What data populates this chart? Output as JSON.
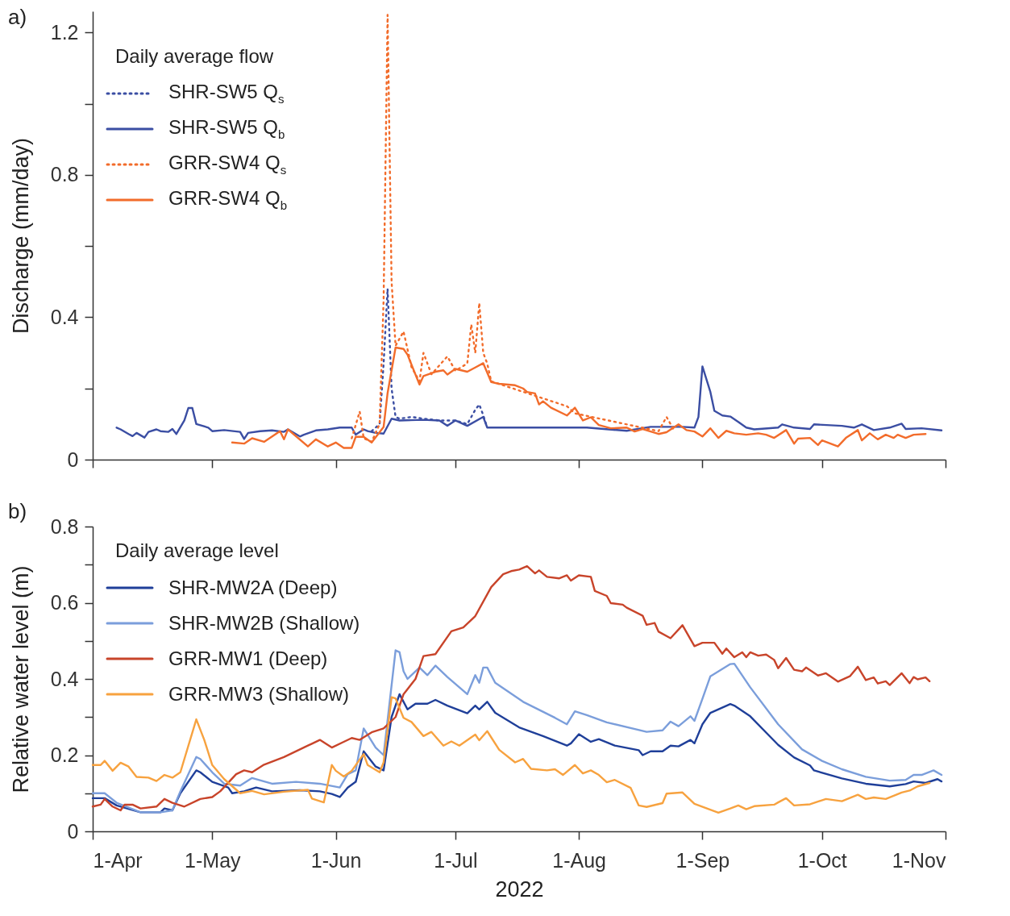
{
  "chart_data": [
    {
      "type": "line",
      "annotations": [
        "a)"
      ],
      "ylabel": "Discharge (mm/day)",
      "legend_title": "Daily average flow",
      "legend": "top left",
      "grid": false,
      "tick_labels": "y",
      "xlim": [
        "2022-04-01",
        "2022-11-01"
      ],
      "xticks": [
        {
          "value": "2022-04-01",
          "label": null
        },
        {
          "value": "2022-05-01",
          "label": null
        },
        {
          "value": "2022-06-01",
          "label": null
        },
        {
          "value": "2022-07-01",
          "label": null
        },
        {
          "value": "2022-08-01",
          "label": null
        },
        {
          "value": "2022-09-01",
          "label": null
        },
        {
          "value": "2022-10-01",
          "label": null
        },
        {
          "value": "2022-11-01",
          "label": null
        }
      ],
      "ylim": [
        0,
        1.26
      ],
      "yticks": [
        0,
        {
          "value": 0.2,
          "label": null
        },
        0.4,
        {
          "value": 0.6,
          "label": null
        },
        0.8,
        {
          "value": 1.0,
          "label": null
        },
        1.2
      ],
      "series": [
        {
          "name": "SHR-SW5 Q$_{s}$",
          "color": "#3b4ea3",
          "line_style": "dotted",
          "x": [
            "2022-06-10",
            "2022-06-11",
            "2022-06-12",
            "2022-06-13",
            "2022-06-14",
            "2022-06-15",
            "2022-06-16",
            "2022-06-17",
            "2022-06-20",
            "2022-06-23",
            "2022-06-27",
            "2022-07-01",
            "2022-07-04",
            "2022-07-05",
            "2022-07-06",
            "2022-07-07",
            "2022-07-08",
            "2022-07-09"
          ],
          "values": [
            0.08,
            0.09,
            0.1,
            0.27,
            0.48,
            0.2,
            0.12,
            0.115,
            0.12,
            0.115,
            0.11,
            0.11,
            0.1,
            0.12,
            0.14,
            0.155,
            0.125,
            0.09
          ]
        },
        {
          "name": "SHR-SW5 Q$_{b}$",
          "color": "#3b4ea3",
          "line_style": "solid",
          "x": [
            "2022-04-07",
            "2022-04-08",
            "2022-04-10",
            "2022-04-11",
            "2022-04-12",
            "2022-04-14",
            "2022-04-15",
            "2022-04-17",
            "2022-04-18",
            "2022-04-20",
            "2022-04-21",
            "2022-04-22",
            "2022-04-24",
            "2022-04-25",
            "2022-04-26",
            "2022-04-27",
            "2022-04-30",
            "2022-05-01",
            "2022-05-04",
            "2022-05-08",
            "2022-05-09",
            "2022-05-10",
            "2022-05-13",
            "2022-05-16",
            "2022-05-19",
            "2022-05-20",
            "2022-05-23",
            "2022-05-24",
            "2022-05-27",
            "2022-05-30",
            "2022-06-02",
            "2022-06-05",
            "2022-06-06",
            "2022-06-08",
            "2022-06-09",
            "2022-06-11",
            "2022-06-13",
            "2022-06-15",
            "2022-06-17",
            "2022-06-23",
            "2022-06-27",
            "2022-06-29",
            "2022-07-01",
            "2022-07-04",
            "2022-07-08",
            "2022-07-09",
            "2022-07-18",
            "2022-08-03",
            "2022-08-13",
            "2022-08-19",
            "2022-08-27",
            "2022-08-30",
            "2022-08-31",
            "2022-09-01",
            "2022-09-03",
            "2022-09-04",
            "2022-09-06",
            "2022-09-08",
            "2022-09-10",
            "2022-09-12",
            "2022-09-14",
            "2022-09-20",
            "2022-09-21",
            "2022-09-24",
            "2022-09-28",
            "2022-09-29",
            "2022-10-06",
            "2022-10-09",
            "2022-10-11",
            "2022-10-14",
            "2022-10-18",
            "2022-10-21",
            "2022-10-22",
            "2022-10-26",
            "2022-10-31"
          ],
          "values": [
            0.09,
            0.085,
            0.072,
            0.066,
            0.075,
            0.062,
            0.078,
            0.085,
            0.08,
            0.078,
            0.086,
            0.072,
            0.11,
            0.145,
            0.145,
            0.1,
            0.09,
            0.08,
            0.083,
            0.078,
            0.058,
            0.075,
            0.08,
            0.082,
            0.078,
            0.085,
            0.065,
            0.07,
            0.082,
            0.085,
            0.09,
            0.09,
            0.07,
            0.085,
            0.08,
            0.075,
            0.073,
            0.115,
            0.11,
            0.112,
            0.11,
            0.095,
            0.11,
            0.095,
            0.12,
            0.09,
            0.09,
            0.09,
            0.081,
            0.092,
            0.092,
            0.09,
            0.12,
            0.262,
            0.19,
            0.137,
            0.124,
            0.121,
            0.106,
            0.09,
            0.085,
            0.09,
            0.099,
            0.09,
            0.086,
            0.099,
            0.095,
            0.09,
            0.099,
            0.083,
            0.09,
            0.101,
            0.086,
            0.088,
            0.082
          ]
        },
        {
          "name": "GRR-SW4 Q$_{s}$",
          "color": "#f26c2b",
          "line_style": "dotted",
          "x": [
            "2022-06-05",
            "2022-06-07",
            "2022-06-08",
            "2022-06-10",
            "2022-06-12",
            "2022-06-13",
            "2022-06-14",
            "2022-06-15",
            "2022-06-16",
            "2022-06-18",
            "2022-06-20",
            "2022-06-22",
            "2022-06-23",
            "2022-06-25",
            "2022-06-29",
            "2022-07-01",
            "2022-07-04",
            "2022-07-05",
            "2022-07-06",
            "2022-07-07",
            "2022-07-08",
            "2022-07-09",
            "2022-07-10",
            "2022-07-29",
            "2022-07-31",
            "2022-08-21",
            "2022-08-23",
            "2022-08-25"
          ],
          "values": [
            0.06,
            0.135,
            0.06,
            0.05,
            0.1,
            0.45,
            1.25,
            0.5,
            0.32,
            0.36,
            0.26,
            0.22,
            0.3,
            0.24,
            0.29,
            0.25,
            0.27,
            0.38,
            0.3,
            0.44,
            0.3,
            0.27,
            0.22,
            0.15,
            0.13,
            0.08,
            0.12,
            0.08
          ]
        },
        {
          "name": "GRR-SW4 Q$_{b}$",
          "color": "#f26c2b",
          "line_style": "solid",
          "x": [
            "2022-05-06",
            "2022-05-09",
            "2022-05-11",
            "2022-05-14",
            "2022-05-18",
            "2022-05-19",
            "2022-05-20",
            "2022-05-25",
            "2022-05-27",
            "2022-05-30",
            "2022-06-01",
            "2022-06-03",
            "2022-06-05",
            "2022-06-06",
            "2022-06-08",
            "2022-06-10",
            "2022-06-13",
            "2022-06-14",
            "2022-06-16",
            "2022-06-18",
            "2022-06-19",
            "2022-06-22",
            "2022-06-23",
            "2022-06-26",
            "2022-06-28",
            "2022-06-29",
            "2022-07-01",
            "2022-07-04",
            "2022-07-06",
            "2022-07-08",
            "2022-07-10",
            "2022-07-12",
            "2022-07-16",
            "2022-07-18",
            "2022-07-19",
            "2022-07-21",
            "2022-07-22",
            "2022-07-23",
            "2022-07-25",
            "2022-07-29",
            "2022-07-31",
            "2022-08-02",
            "2022-08-04",
            "2022-08-06",
            "2022-08-09",
            "2022-08-13",
            "2022-08-15",
            "2022-08-17",
            "2022-08-19",
            "2022-08-21",
            "2022-08-23",
            "2022-08-26",
            "2022-08-28",
            "2022-08-30",
            "2022-09-01",
            "2022-09-03",
            "2022-09-05",
            "2022-09-07",
            "2022-09-09",
            "2022-09-12",
            "2022-09-15",
            "2022-09-17",
            "2022-09-19",
            "2022-09-22",
            "2022-09-24",
            "2022-09-25",
            "2022-09-28",
            "2022-09-30",
            "2022-10-01",
            "2022-10-05",
            "2022-10-07",
            "2022-10-10",
            "2022-10-11",
            "2022-10-13",
            "2022-10-15",
            "2022-10-17",
            "2022-10-19",
            "2022-10-20",
            "2022-10-22",
            "2022-10-24",
            "2022-10-27"
          ],
          "values": [
            0.048,
            0.045,
            0.06,
            0.05,
            0.08,
            0.057,
            0.085,
            0.037,
            0.057,
            0.037,
            0.048,
            0.033,
            0.033,
            0.064,
            0.064,
            0.048,
            0.092,
            0.187,
            0.315,
            0.311,
            0.295,
            0.211,
            0.235,
            0.247,
            0.251,
            0.239,
            0.255,
            0.247,
            0.259,
            0.271,
            0.218,
            0.213,
            0.209,
            0.2,
            0.19,
            0.186,
            0.155,
            0.164,
            0.146,
            0.124,
            0.146,
            0.11,
            0.119,
            0.097,
            0.088,
            0.09,
            0.079,
            0.086,
            0.079,
            0.072,
            0.077,
            0.099,
            0.083,
            0.079,
            0.065,
            0.088,
            0.061,
            0.081,
            0.074,
            0.07,
            0.074,
            0.07,
            0.061,
            0.083,
            0.045,
            0.059,
            0.061,
            0.041,
            0.054,
            0.037,
            0.061,
            0.083,
            0.054,
            0.074,
            0.057,
            0.07,
            0.061,
            0.07,
            0.061,
            0.07,
            0.072
          ]
        }
      ]
    },
    {
      "type": "line",
      "annotations": [
        "b)"
      ],
      "xlabel": "2022",
      "ylabel": "Relative water level (m)",
      "legend_title": "Daily average level",
      "legend": "top left",
      "grid": false,
      "xlim": [
        "2022-04-01",
        "2022-11-01"
      ],
      "xticks": [
        {
          "value": "2022-04-01",
          "label": "1-Apr"
        },
        {
          "value": "2022-05-01",
          "label": "1-May"
        },
        {
          "value": "2022-06-01",
          "label": "1-Jun"
        },
        {
          "value": "2022-07-01",
          "label": "1-Jul"
        },
        {
          "value": "2022-08-01",
          "label": "1-Aug"
        },
        {
          "value": "2022-09-01",
          "label": "1-Sep"
        },
        {
          "value": "2022-10-01",
          "label": "1-Oct"
        },
        {
          "value": "2022-11-01",
          "label": "1-Nov"
        }
      ],
      "ylim": [
        0,
        0.8
      ],
      "yticks": [
        0,
        {
          "value": 0.1,
          "label": null
        },
        0.2,
        {
          "value": 0.3,
          "label": null
        },
        0.4,
        {
          "value": 0.5,
          "label": null
        },
        0.6,
        {
          "value": 0.7,
          "label": null
        },
        0.8
      ],
      "series": [
        {
          "name": "SHR-MW2A (Deep)",
          "color": "#1f3f99",
          "x": [
            "2022-04-01",
            "2022-04-04",
            "2022-04-07",
            "2022-04-13",
            "2022-04-18",
            "2022-04-19",
            "2022-04-21",
            "2022-04-23",
            "2022-04-27",
            "2022-04-28",
            "2022-05-01",
            "2022-05-05",
            "2022-05-06",
            "2022-05-09",
            "2022-05-12",
            "2022-05-16",
            "2022-05-23",
            "2022-05-28",
            "2022-05-31",
            "2022-06-02",
            "2022-06-04",
            "2022-06-06",
            "2022-06-08",
            "2022-06-11",
            "2022-06-13",
            "2022-06-15",
            "2022-06-17",
            "2022-06-19",
            "2022-06-21",
            "2022-06-24",
            "2022-06-26",
            "2022-06-29",
            "2022-07-04",
            "2022-07-06",
            "2022-07-07",
            "2022-07-09",
            "2022-07-11",
            "2022-07-17",
            "2022-07-23",
            "2022-07-29",
            "2022-07-30",
            "2022-08-01",
            "2022-08-04",
            "2022-08-06",
            "2022-08-10",
            "2022-08-16",
            "2022-08-17",
            "2022-08-19",
            "2022-08-22",
            "2022-08-24",
            "2022-08-26",
            "2022-08-29",
            "2022-08-30",
            "2022-09-01",
            "2022-09-03",
            "2022-09-08",
            "2022-09-09",
            "2022-09-13",
            "2022-09-20",
            "2022-09-24",
            "2022-09-28",
            "2022-09-29",
            "2022-10-06",
            "2022-10-12",
            "2022-10-18",
            "2022-10-22",
            "2022-10-24",
            "2022-10-27",
            "2022-10-30",
            "2022-10-31"
          ],
          "values": [
            0.087,
            0.087,
            0.068,
            0.05,
            0.05,
            0.06,
            0.055,
            0.1,
            0.16,
            0.155,
            0.13,
            0.115,
            0.1,
            0.105,
            0.115,
            0.105,
            0.108,
            0.105,
            0.098,
            0.09,
            0.115,
            0.13,
            0.21,
            0.17,
            0.16,
            0.3,
            0.36,
            0.32,
            0.335,
            0.335,
            0.345,
            0.33,
            0.31,
            0.33,
            0.32,
            0.34,
            0.311,
            0.273,
            0.25,
            0.225,
            0.231,
            0.255,
            0.235,
            0.242,
            0.225,
            0.213,
            0.2,
            0.21,
            0.21,
            0.225,
            0.223,
            0.24,
            0.231,
            0.281,
            0.311,
            0.334,
            0.33,
            0.302,
            0.227,
            0.194,
            0.173,
            0.16,
            0.139,
            0.125,
            0.118,
            0.124,
            0.131,
            0.127,
            0.137,
            0.131
          ]
        },
        {
          "name": "SHR-MW2B (Shallow)",
          "color": "#7b9edb",
          "x": [
            "2022-04-01",
            "2022-04-04",
            "2022-04-07",
            "2022-04-13",
            "2022-04-18",
            "2022-04-21",
            "2022-04-23",
            "2022-04-27",
            "2022-04-28",
            "2022-05-01",
            "2022-05-04",
            "2022-05-08",
            "2022-05-11",
            "2022-05-16",
            "2022-05-22",
            "2022-05-28",
            "2022-06-02",
            "2022-06-04",
            "2022-06-06",
            "2022-06-08",
            "2022-06-11",
            "2022-06-13",
            "2022-06-16",
            "2022-06-17",
            "2022-06-18",
            "2022-06-19",
            "2022-06-22",
            "2022-06-24",
            "2022-06-26",
            "2022-06-29",
            "2022-07-04",
            "2022-07-06",
            "2022-07-07",
            "2022-07-08",
            "2022-07-09",
            "2022-07-11",
            "2022-07-18",
            "2022-07-26",
            "2022-07-29",
            "2022-07-31",
            "2022-08-03",
            "2022-08-08",
            "2022-08-18",
            "2022-08-22",
            "2022-08-24",
            "2022-08-26",
            "2022-08-29",
            "2022-08-30",
            "2022-09-01",
            "2022-09-03",
            "2022-09-08",
            "2022-09-09",
            "2022-09-13",
            "2022-09-20",
            "2022-09-26",
            "2022-10-01",
            "2022-10-06",
            "2022-10-12",
            "2022-10-18",
            "2022-10-22",
            "2022-10-24",
            "2022-10-26",
            "2022-10-29",
            "2022-10-31"
          ],
          "values": [
            0.1,
            0.1,
            0.075,
            0.05,
            0.05,
            0.055,
            0.105,
            0.195,
            0.19,
            0.155,
            0.125,
            0.12,
            0.14,
            0.125,
            0.13,
            0.125,
            0.115,
            0.15,
            0.16,
            0.27,
            0.22,
            0.2,
            0.475,
            0.47,
            0.42,
            0.4,
            0.43,
            0.41,
            0.435,
            0.405,
            0.36,
            0.41,
            0.39,
            0.43,
            0.43,
            0.39,
            0.34,
            0.298,
            0.281,
            0.315,
            0.305,
            0.286,
            0.261,
            0.265,
            0.288,
            0.276,
            0.302,
            0.29,
            0.348,
            0.407,
            0.439,
            0.44,
            0.378,
            0.281,
            0.215,
            0.185,
            0.163,
            0.143,
            0.133,
            0.135,
            0.148,
            0.148,
            0.16,
            0.148
          ]
        },
        {
          "name": "GRR-MW1 (Deep)",
          "color": "#c8442a",
          "x": [
            "2022-04-01",
            "2022-04-03",
            "2022-04-04",
            "2022-04-06",
            "2022-04-08",
            "2022-04-09",
            "2022-04-11",
            "2022-04-13",
            "2022-04-17",
            "2022-04-19",
            "2022-04-21",
            "2022-04-24",
            "2022-04-28",
            "2022-05-01",
            "2022-05-03",
            "2022-05-07",
            "2022-05-09",
            "2022-05-11",
            "2022-05-14",
            "2022-05-19",
            "2022-05-25",
            "2022-05-26",
            "2022-05-28",
            "2022-05-31",
            "2022-06-03",
            "2022-06-05",
            "2022-06-07",
            "2022-06-10",
            "2022-06-13",
            "2022-06-16",
            "2022-06-18",
            "2022-06-21",
            "2022-06-23",
            "2022-06-26",
            "2022-06-30",
            "2022-07-03",
            "2022-07-06",
            "2022-07-10",
            "2022-07-13",
            "2022-07-15",
            "2022-07-17",
            "2022-07-19",
            "2022-07-21",
            "2022-07-22",
            "2022-07-24",
            "2022-07-27",
            "2022-07-29",
            "2022-07-30",
            "2022-08-01",
            "2022-08-04",
            "2022-08-05",
            "2022-08-08",
            "2022-08-09",
            "2022-08-12",
            "2022-08-13",
            "2022-08-17",
            "2022-08-18",
            "2022-08-20",
            "2022-08-21",
            "2022-08-24",
            "2022-08-27",
            "2022-08-30",
            "2022-09-01",
            "2022-09-04",
            "2022-09-06",
            "2022-09-07",
            "2022-09-09",
            "2022-09-11",
            "2022-09-12",
            "2022-09-13",
            "2022-09-15",
            "2022-09-17",
            "2022-09-19",
            "2022-09-20",
            "2022-09-22",
            "2022-09-24",
            "2022-09-26",
            "2022-09-27",
            "2022-09-30",
            "2022-10-02",
            "2022-10-05",
            "2022-10-08",
            "2022-10-10",
            "2022-10-12",
            "2022-10-14",
            "2022-10-15",
            "2022-10-17",
            "2022-10-18",
            "2022-10-21",
            "2022-10-23",
            "2022-10-24",
            "2022-10-25",
            "2022-10-27",
            "2022-10-28"
          ],
          "values": [
            0.065,
            0.07,
            0.085,
            0.065,
            0.055,
            0.07,
            0.07,
            0.06,
            0.065,
            0.085,
            0.075,
            0.065,
            0.085,
            0.09,
            0.105,
            0.15,
            0.16,
            0.155,
            0.175,
            0.195,
            0.225,
            0.23,
            0.24,
            0.22,
            0.235,
            0.245,
            0.24,
            0.26,
            0.27,
            0.3,
            0.36,
            0.4,
            0.46,
            0.465,
            0.525,
            0.535,
            0.565,
            0.641,
            0.675,
            0.683,
            0.687,
            0.696,
            0.677,
            0.685,
            0.668,
            0.664,
            0.672,
            0.658,
            0.672,
            0.668,
            0.631,
            0.618,
            0.599,
            0.595,
            0.587,
            0.566,
            0.542,
            0.547,
            0.524,
            0.507,
            0.541,
            0.486,
            0.495,
            0.495,
            0.466,
            0.48,
            0.457,
            0.47,
            0.457,
            0.47,
            0.461,
            0.464,
            0.45,
            0.428,
            0.455,
            0.424,
            0.42,
            0.43,
            0.409,
            0.415,
            0.393,
            0.407,
            0.432,
            0.397,
            0.404,
            0.388,
            0.394,
            0.384,
            0.415,
            0.389,
            0.405,
            0.399,
            0.404,
            0.394
          ]
        },
        {
          "name": "GRR-MW3 (Shallow)",
          "color": "#f7a23f",
          "x": [
            "2022-04-01",
            "2022-04-03",
            "2022-04-04",
            "2022-04-06",
            "2022-04-08",
            "2022-04-10",
            "2022-04-12",
            "2022-04-15",
            "2022-04-17",
            "2022-04-19",
            "2022-04-21",
            "2022-04-23",
            "2022-04-27",
            "2022-04-29",
            "2022-05-01",
            "2022-05-04",
            "2022-05-08",
            "2022-05-11",
            "2022-05-14",
            "2022-05-19",
            "2022-05-25",
            "2022-05-26",
            "2022-05-29",
            "2022-05-31",
            "2022-06-01",
            "2022-06-03",
            "2022-06-05",
            "2022-06-08",
            "2022-06-09",
            "2022-06-12",
            "2022-06-13",
            "2022-06-15",
            "2022-06-16",
            "2022-06-18",
            "2022-06-20",
            "2022-06-23",
            "2022-06-25",
            "2022-06-28",
            "2022-06-30",
            "2022-07-02",
            "2022-07-06",
            "2022-07-07",
            "2022-07-09",
            "2022-07-12",
            "2022-07-16",
            "2022-07-18",
            "2022-07-20",
            "2022-07-24",
            "2022-07-26",
            "2022-07-28",
            "2022-07-31",
            "2022-08-02",
            "2022-08-04",
            "2022-08-06",
            "2022-08-08",
            "2022-08-10",
            "2022-08-14",
            "2022-08-16",
            "2022-08-18",
            "2022-08-22",
            "2022-08-23",
            "2022-08-27",
            "2022-08-30",
            "2022-09-05",
            "2022-09-08",
            "2022-09-10",
            "2022-09-12",
            "2022-09-14",
            "2022-09-19",
            "2022-09-20",
            "2022-09-22",
            "2022-09-24",
            "2022-09-28",
            "2022-10-02",
            "2022-10-06",
            "2022-10-10",
            "2022-10-12",
            "2022-10-14",
            "2022-10-17",
            "2022-10-21",
            "2022-10-23",
            "2022-10-25",
            "2022-10-28"
          ],
          "values": [
            0.174,
            0.174,
            0.185,
            0.159,
            0.18,
            0.17,
            0.143,
            0.141,
            0.132,
            0.148,
            0.141,
            0.155,
            0.294,
            0.24,
            0.174,
            0.137,
            0.1,
            0.106,
            0.097,
            0.104,
            0.109,
            0.086,
            0.076,
            0.174,
            0.159,
            0.144,
            0.159,
            0.203,
            0.174,
            0.155,
            0.181,
            0.352,
            0.349,
            0.298,
            0.287,
            0.25,
            0.261,
            0.225,
            0.236,
            0.225,
            0.254,
            0.239,
            0.263,
            0.214,
            0.181,
            0.19,
            0.164,
            0.16,
            0.163,
            0.148,
            0.174,
            0.152,
            0.16,
            0.148,
            0.129,
            0.135,
            0.114,
            0.068,
            0.064,
            0.074,
            0.099,
            0.102,
            0.072,
            0.049,
            0.06,
            0.068,
            0.058,
            0.066,
            0.07,
            0.076,
            0.087,
            0.068,
            0.071,
            0.085,
            0.079,
            0.096,
            0.085,
            0.089,
            0.085,
            0.102,
            0.107,
            0.118,
            0.127
          ]
        }
      ]
    }
  ]
}
